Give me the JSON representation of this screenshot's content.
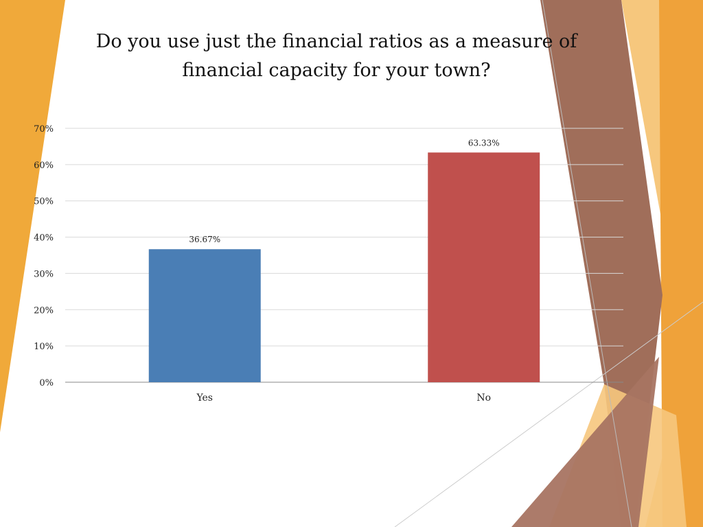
{
  "slide": {
    "title": "Do you use just the financial ratios as a measure of financial capacity for your town?"
  },
  "colors": {
    "orange": "#F0A93A",
    "orange_light": "#F6C77D",
    "brown": "#A06E5A",
    "bar_yes": "#4A7EB5",
    "bar_no": "#C0504D",
    "grid": "#D9D9D9",
    "axis": "#888888"
  },
  "chart_data": {
    "type": "bar",
    "categories": [
      "Yes",
      "No"
    ],
    "values": [
      36.67,
      63.33
    ],
    "value_labels": [
      "36.67%",
      "63.33%"
    ],
    "title": "Do you use just the financial ratios as a measure of financial capacity for your town?",
    "xlabel": "",
    "ylabel": "",
    "ylim": [
      0,
      70
    ],
    "yticks": [
      "0%",
      "10%",
      "20%",
      "30%",
      "40%",
      "50%",
      "60%",
      "70%"
    ],
    "grid": true,
    "legend": "none"
  }
}
